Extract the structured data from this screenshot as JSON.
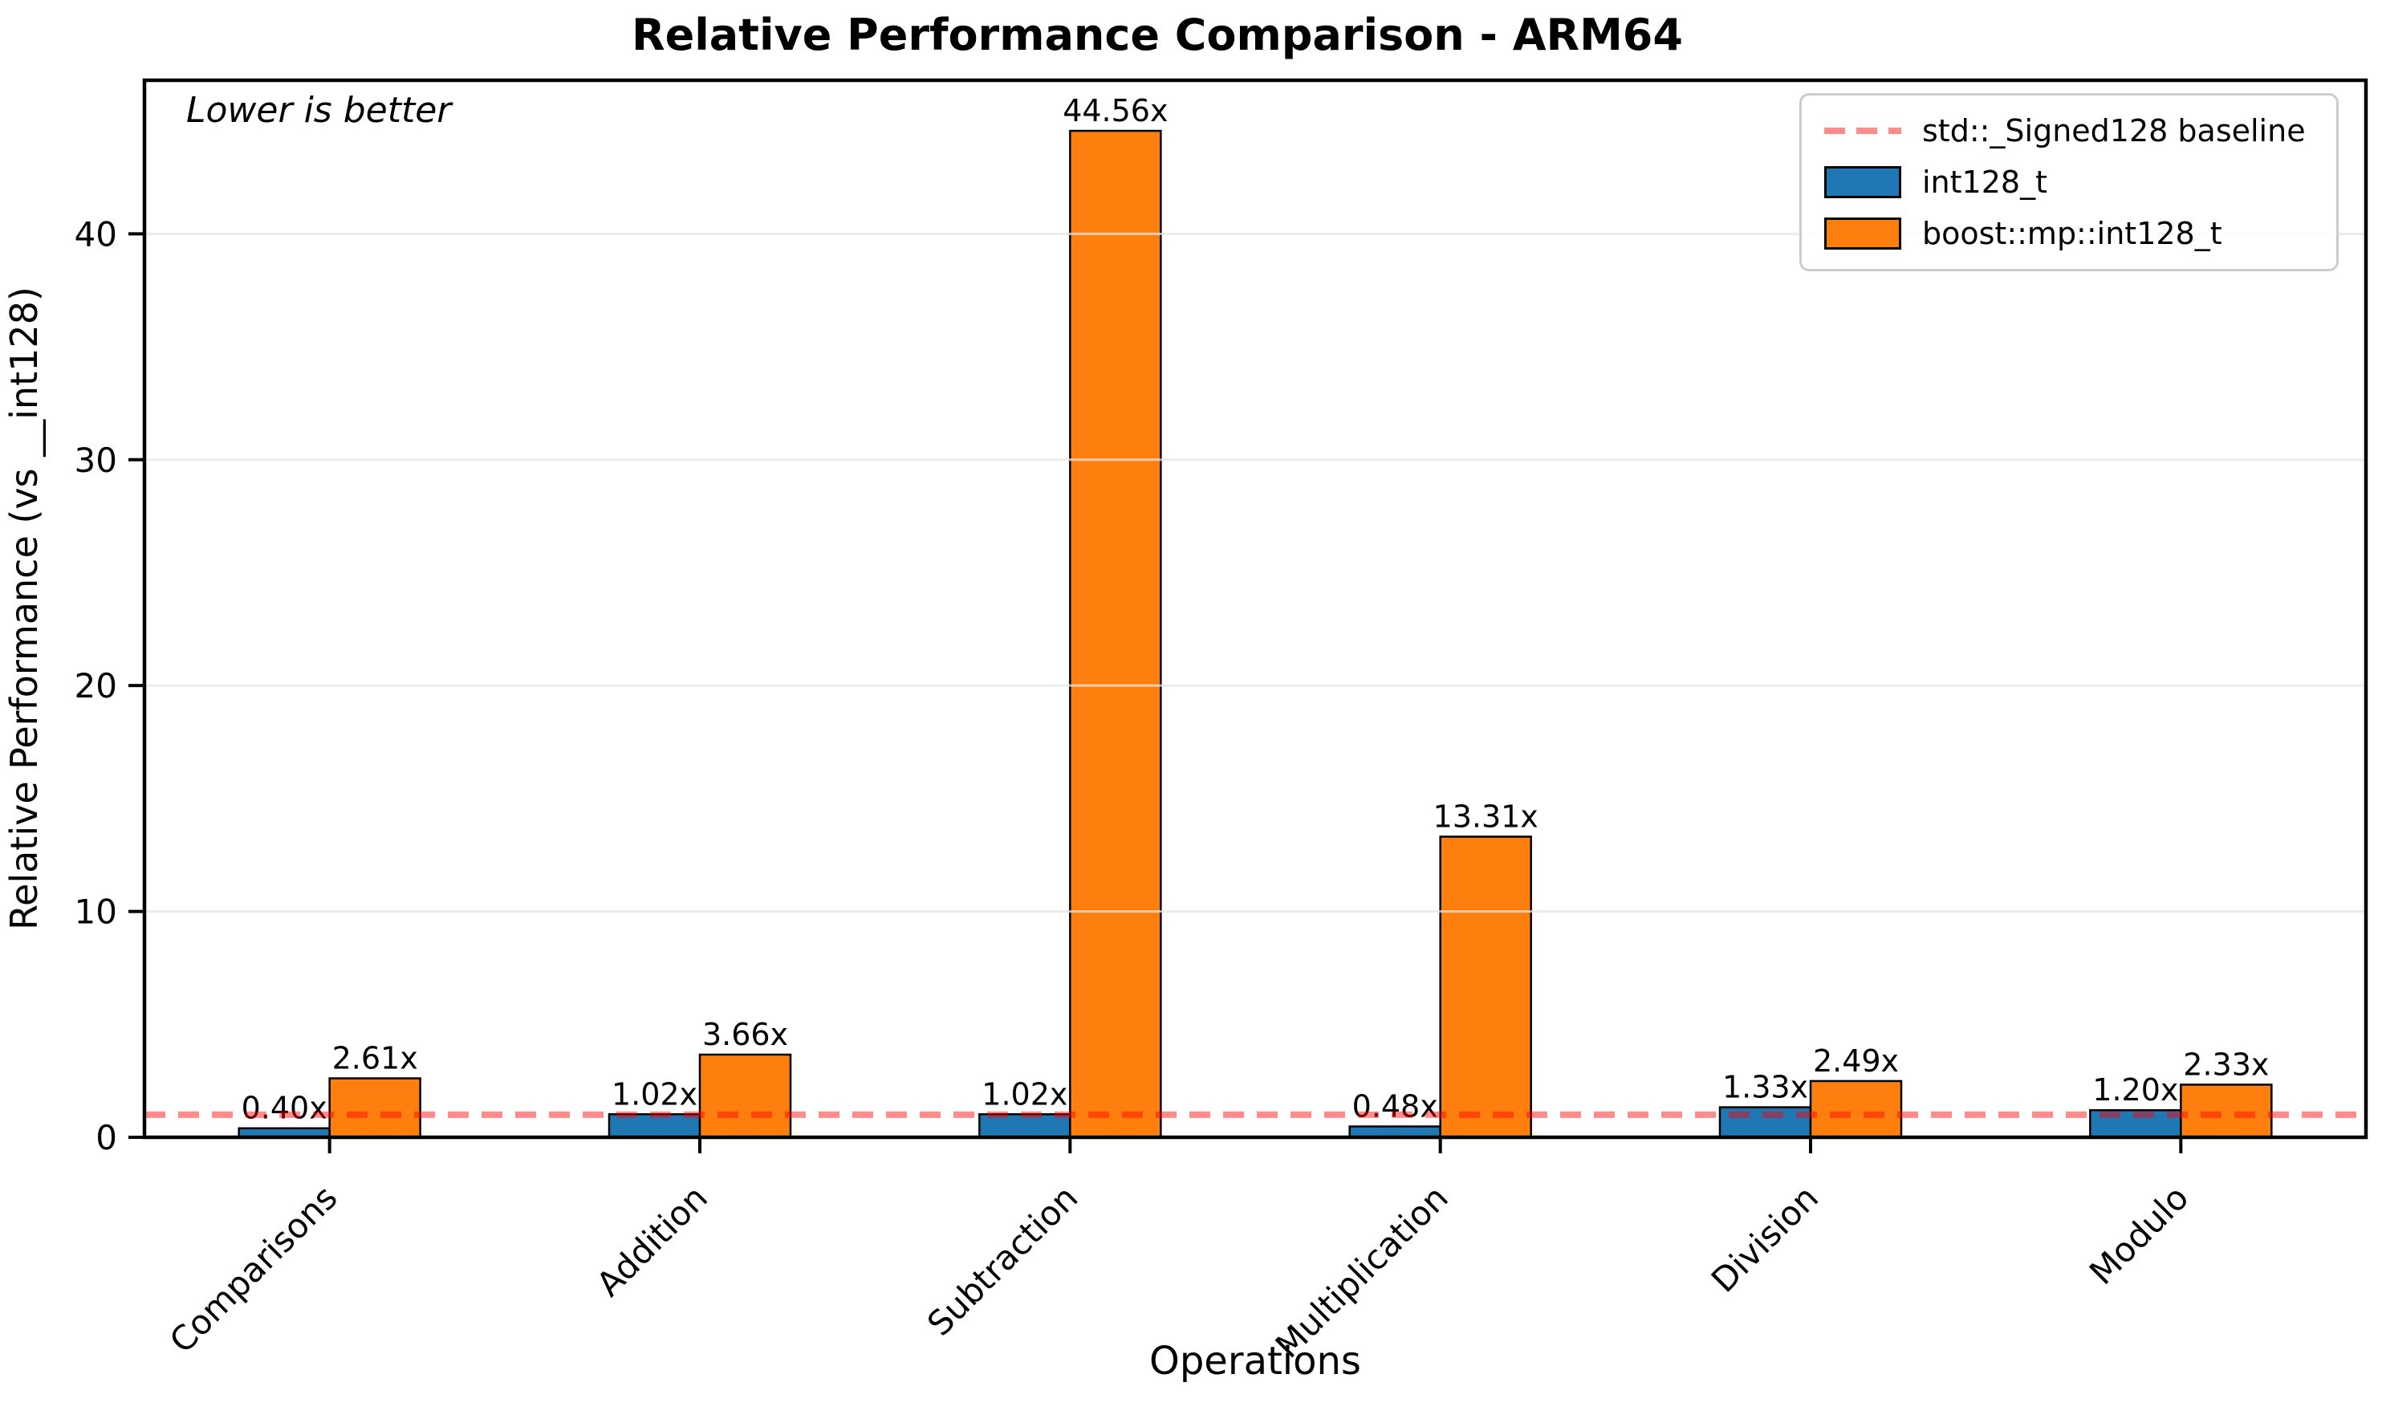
{
  "figure": {
    "background": "#ffffff"
  },
  "chart_data": {
    "type": "bar",
    "title": "Relative Performance Comparison - ARM64",
    "xlabel": "Operations",
    "ylabel": "Relative Performance (vs __int128)",
    "annotation": "Lower is better",
    "categories": [
      "Comparisons",
      "Addition",
      "Subtraction",
      "Multiplication",
      "Division",
      "Modulo"
    ],
    "series": [
      {
        "name": "int128_t",
        "color": "#1f77b4",
        "values": [
          0.4,
          1.02,
          1.02,
          0.48,
          1.33,
          1.2
        ],
        "labels": [
          "0.40x",
          "1.02x",
          "1.02x",
          "0.48x",
          "1.33x",
          "1.20x"
        ]
      },
      {
        "name": "boost::mp::int128_t",
        "color": "#ff7f0e",
        "values": [
          2.61,
          3.66,
          44.56,
          13.31,
          2.49,
          2.33
        ],
        "labels": [
          "2.61x",
          "3.66x",
          "44.56x",
          "13.31x",
          "2.49x",
          "2.33x"
        ]
      }
    ],
    "baseline": {
      "label": "std::_Signed128 baseline",
      "value": 1,
      "color": "#ff8c8c",
      "style": "dashed"
    },
    "ylim": [
      0,
      46.8
    ],
    "yticks": [
      0,
      10,
      20,
      30,
      40
    ],
    "grid": "horizontal",
    "gridcolor": "#e6e6e6",
    "legend_position": "upper right",
    "bar_edge_color": "#000000"
  }
}
